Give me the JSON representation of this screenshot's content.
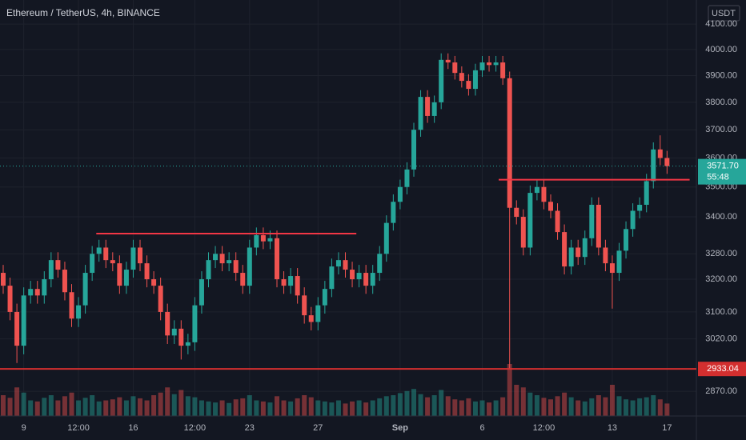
{
  "chart_data": {
    "type": "candlestick",
    "title": "Ethereum / TetherUS, 4h, BINANCE",
    "currency": "USDT",
    "log_scale": true,
    "grid": true,
    "up_color": "#26a69a",
    "down_color": "#ef5350",
    "categories": [
      null,
      null,
      null,
      "9",
      null,
      null,
      null,
      null,
      null,
      null,
      null,
      "12:00",
      null,
      null,
      null,
      null,
      null,
      null,
      null,
      "16",
      null,
      null,
      null,
      null,
      null,
      null,
      null,
      null,
      "12:00",
      null,
      null,
      null,
      null,
      null,
      null,
      null,
      "23",
      null,
      null,
      null,
      null,
      null,
      null,
      null,
      null,
      null,
      "27",
      null,
      null,
      null,
      null,
      null,
      null,
      null,
      null,
      null,
      null,
      null,
      "Sep",
      null,
      null,
      null,
      null,
      null,
      null,
      null,
      null,
      null,
      null,
      null,
      "6",
      null,
      null,
      null,
      null,
      null,
      null,
      null,
      null,
      "12:00",
      null,
      null,
      null,
      null,
      null,
      null,
      null,
      null,
      null,
      "13",
      null,
      null,
      null,
      null,
      null,
      null,
      null,
      "17"
    ],
    "open": [
      3220,
      3180,
      3100,
      3000,
      3150,
      3170,
      3150,
      3200,
      3260,
      3230,
      3160,
      3080,
      3120,
      3220,
      3280,
      3300,
      3260,
      3250,
      3180,
      3230,
      3300,
      3250,
      3200,
      3180,
      3100,
      3030,
      3050,
      3000,
      3010,
      3120,
      3200,
      3260,
      3280,
      3250,
      3260,
      3220,
      3180,
      3300,
      3340,
      3320,
      3330,
      3200,
      3180,
      3210,
      3150,
      3090,
      3070,
      3120,
      3170,
      3240,
      3260,
      3230,
      3200,
      3220,
      3180,
      3220,
      3280,
      3380,
      3450,
      3500,
      3560,
      3700,
      3820,
      3750,
      3800,
      3960,
      3950,
      3910,
      3880,
      3850,
      3920,
      3950,
      3940,
      3950,
      3890,
      3430,
      3400,
      3300,
      3480,
      3500,
      3450,
      3420,
      3350,
      3240,
      3300,
      3270,
      3330,
      3440,
      3300,
      3250,
      3220,
      3290,
      3360,
      3420,
      3440,
      3520,
      3630,
      3600
    ],
    "high": [
      3245,
      3205,
      3125,
      3175,
      3195,
      3195,
      3225,
      3285,
      3285,
      3255,
      3185,
      3145,
      3245,
      3305,
      3325,
      3325,
      3285,
      3275,
      3255,
      3325,
      3325,
      3275,
      3225,
      3205,
      3125,
      3075,
      3075,
      3035,
      3145,
      3225,
      3285,
      3305,
      3305,
      3285,
      3285,
      3245,
      3325,
      3365,
      3365,
      3355,
      3355,
      3225,
      3235,
      3235,
      3175,
      3115,
      3145,
      3195,
      3265,
      3285,
      3285,
      3255,
      3245,
      3245,
      3245,
      3305,
      3405,
      3475,
      3525,
      3585,
      3725,
      3845,
      3845,
      3825,
      3985,
      3985,
      3975,
      3935,
      3905,
      3945,
      3975,
      3975,
      3975,
      3975,
      3915,
      3455,
      3425,
      3505,
      3525,
      3525,
      3475,
      3445,
      3375,
      3325,
      3325,
      3355,
      3465,
      3465,
      3325,
      3275,
      3315,
      3385,
      3445,
      3465,
      3545,
      3655,
      3680,
      3625
    ],
    "low": [
      3155,
      3075,
      2950,
      2975,
      3125,
      3125,
      3125,
      3175,
      3205,
      3135,
      3055,
      3055,
      3095,
      3195,
      3255,
      3235,
      3225,
      3155,
      3155,
      3205,
      3225,
      3175,
      3155,
      3075,
      3005,
      3005,
      2960,
      2975,
      2985,
      3095,
      3175,
      3235,
      3225,
      3225,
      3195,
      3155,
      3155,
      3275,
      3295,
      3295,
      3175,
      3155,
      3155,
      3125,
      3065,
      3045,
      3045,
      3095,
      3145,
      3215,
      3205,
      3175,
      3175,
      3155,
      3155,
      3195,
      3255,
      3355,
      3425,
      3475,
      3535,
      3675,
      3725,
      3725,
      3775,
      3925,
      3885,
      3855,
      3825,
      3825,
      3895,
      3915,
      3915,
      3865,
      2933.04,
      3375,
      3275,
      3275,
      3455,
      3425,
      3395,
      3325,
      3215,
      3215,
      3245,
      3245,
      3305,
      3275,
      3225,
      3110,
      3195,
      3265,
      3335,
      3395,
      3415,
      3495,
      3575,
      3545
    ],
    "close": [
      3180,
      3100,
      3000,
      3150,
      3170,
      3150,
      3200,
      3260,
      3230,
      3160,
      3080,
      3120,
      3220,
      3280,
      3300,
      3260,
      3250,
      3180,
      3230,
      3300,
      3250,
      3200,
      3180,
      3100,
      3030,
      3050,
      3000,
      3010,
      3120,
      3200,
      3260,
      3280,
      3250,
      3260,
      3220,
      3180,
      3300,
      3340,
      3320,
      3330,
      3200,
      3180,
      3210,
      3150,
      3090,
      3070,
      3120,
      3170,
      3240,
      3260,
      3230,
      3200,
      3220,
      3180,
      3220,
      3280,
      3380,
      3450,
      3500,
      3560,
      3700,
      3820,
      3750,
      3800,
      3960,
      3950,
      3910,
      3880,
      3850,
      3920,
      3950,
      3940,
      3950,
      3890,
      3430,
      3400,
      3300,
      3480,
      3500,
      3450,
      3420,
      3350,
      3240,
      3300,
      3270,
      3330,
      3440,
      3300,
      3250,
      3220,
      3290,
      3360,
      3420,
      3440,
      3520,
      3630,
      3600,
      3571.7
    ],
    "volume": [
      40,
      35,
      55,
      45,
      30,
      28,
      35,
      40,
      30,
      38,
      45,
      30,
      35,
      40,
      28,
      30,
      32,
      36,
      30,
      38,
      34,
      30,
      40,
      45,
      55,
      42,
      50,
      38,
      36,
      30,
      28,
      26,
      30,
      25,
      32,
      34,
      40,
      30,
      28,
      26,
      38,
      30,
      28,
      34,
      40,
      36,
      30,
      28,
      26,
      30,
      24,
      28,
      30,
      26,
      30,
      34,
      38,
      40,
      44,
      48,
      52,
      42,
      36,
      40,
      50,
      38,
      32,
      30,
      34,
      28,
      30,
      26,
      30,
      36,
      100,
      60,
      55,
      45,
      40,
      35,
      32,
      38,
      45,
      36,
      30,
      28,
      34,
      40,
      36,
      60,
      38,
      32,
      30,
      34,
      36,
      40,
      32,
      24
    ],
    "ylim": [
      2802,
      4197
    ],
    "yticks": [
      {
        "value": 4100,
        "label": "4100.00"
      },
      {
        "value": 4000,
        "label": "4000.00"
      },
      {
        "value": 3900,
        "label": "3900.00"
      },
      {
        "value": 3800,
        "label": "3800.00"
      },
      {
        "value": 3700,
        "label": "3700.00"
      },
      {
        "value": 3600,
        "label": "3600.00"
      },
      {
        "value": 3500,
        "label": "3500.00"
      },
      {
        "value": 3400,
        "label": "3400.00"
      },
      {
        "value": 3280,
        "label": "3280.00"
      },
      {
        "value": 3200,
        "label": "3200.00"
      },
      {
        "value": 3100,
        "label": "3100.00"
      },
      {
        "value": 3020,
        "label": "3020.00"
      },
      {
        "value": 2870,
        "label": "2870.00"
      }
    ],
    "last_price": {
      "value": 3571.7,
      "label": "3571.70"
    },
    "countdown": "55:48",
    "support": {
      "value": 2933.04,
      "label": "2933.04"
    },
    "levels": [
      {
        "value": 3345,
        "start": 13.6,
        "end": 51.6
      },
      {
        "value": 3525,
        "start": 72.4,
        "end": 100.3
      }
    ]
  }
}
